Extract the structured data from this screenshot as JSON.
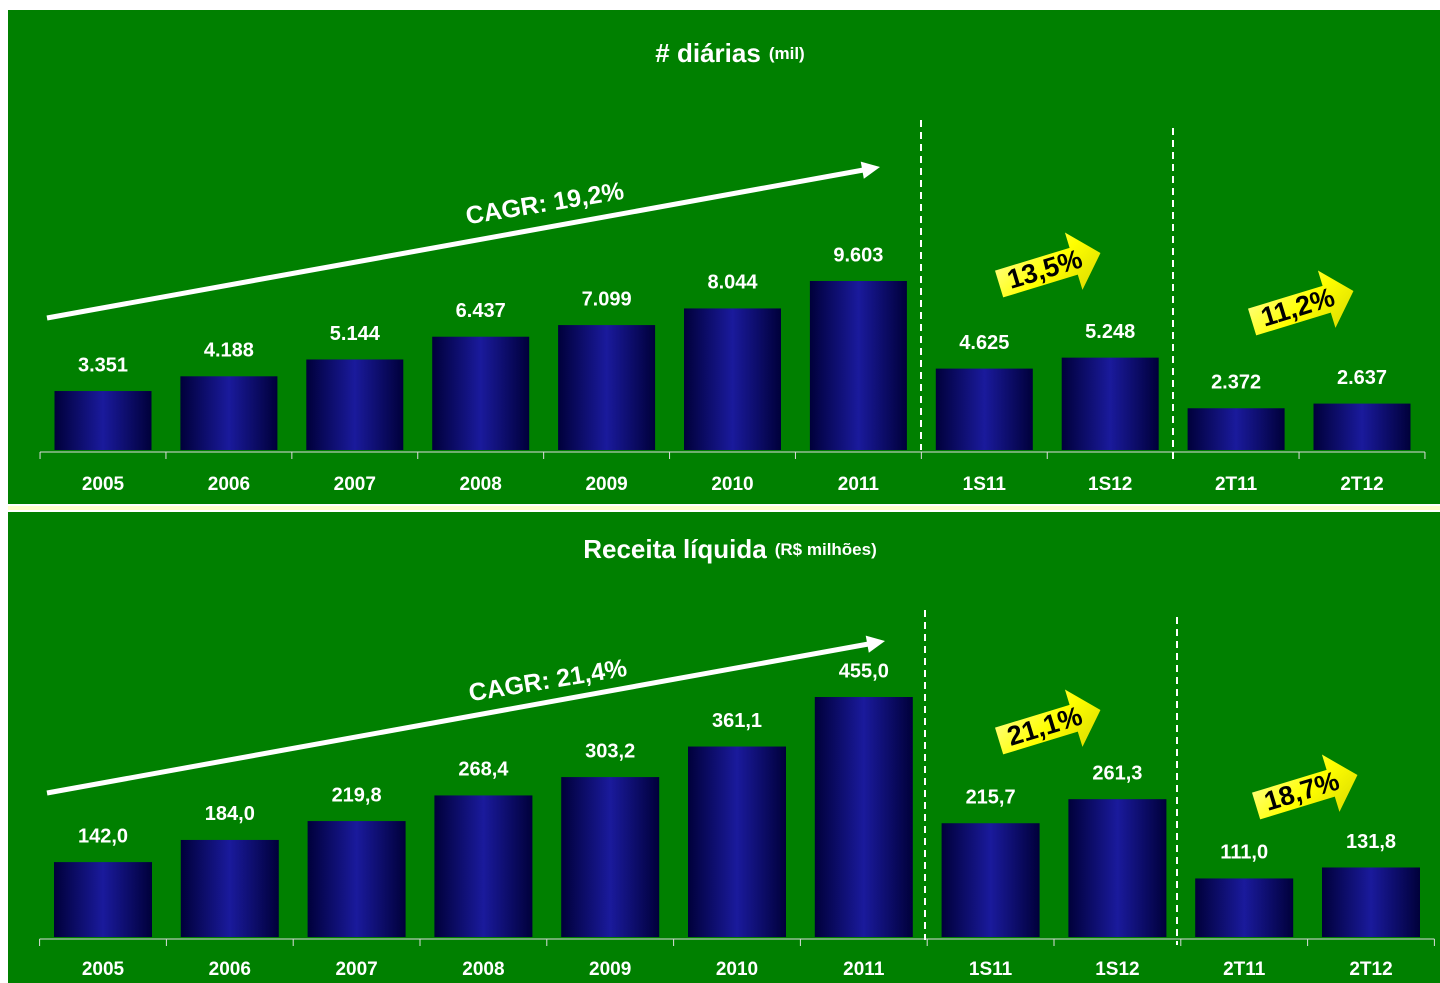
{
  "chart_data": [
    {
      "type": "bar",
      "title": "# diárias",
      "subtitle": "(mil)",
      "categories": [
        "2005",
        "2006",
        "2007",
        "2008",
        "2009",
        "2010",
        "2011",
        "1S11",
        "1S12",
        "2T11",
        "2T12"
      ],
      "values": [
        3351,
        4188,
        5144,
        6437,
        7099,
        8044,
        9603,
        4625,
        5248,
        2372,
        2637
      ],
      "value_labels": [
        "3.351",
        "4.188",
        "5.144",
        "6.437",
        "7.099",
        "8.044",
        "9.603",
        "4.625",
        "5.248",
        "2.372",
        "2.637"
      ],
      "color": "#1a1a9c",
      "cagr": "CAGR: 19,2%",
      "growth": [
        "13,5%",
        "11,2%"
      ]
    },
    {
      "type": "bar",
      "title": "Receita líquida",
      "subtitle": "(R$ milhões)",
      "categories": [
        "2005",
        "2006",
        "2007",
        "2008",
        "2009",
        "2010",
        "2011",
        "1S11",
        "1S12",
        "2T11",
        "2T12"
      ],
      "values": [
        142.0,
        184.0,
        219.8,
        268.4,
        303.2,
        361.1,
        455.0,
        215.7,
        261.3,
        111.0,
        131.8
      ],
      "value_labels": [
        "142,0",
        "184,0",
        "219,8",
        "268,4",
        "303,2",
        "361,1",
        "455,0",
        "215,7",
        "261,3",
        "111,0",
        "131,8"
      ],
      "color": "#1a1a9c",
      "cagr": "CAGR: 21,4%",
      "growth": [
        "21,1%",
        "18,7%"
      ]
    }
  ]
}
